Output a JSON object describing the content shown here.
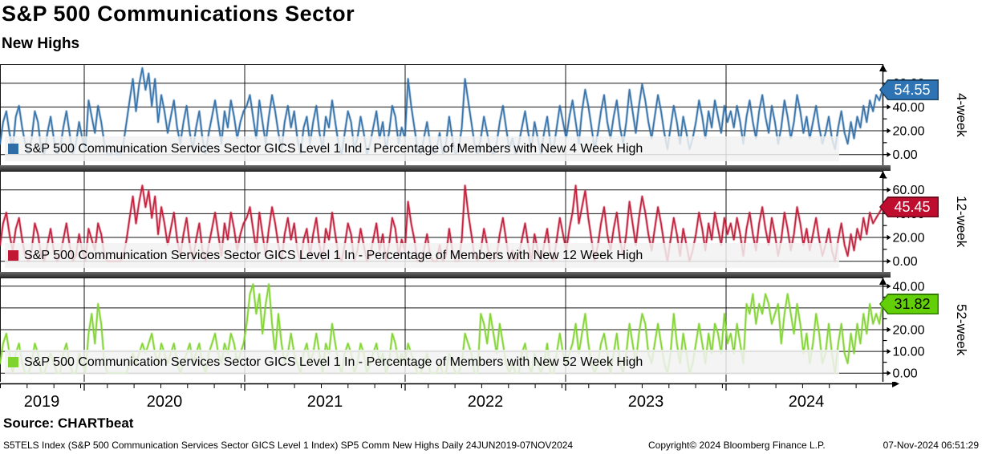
{
  "header": {
    "title": "S&P 500 Communications Sector",
    "subtitle": "New Highs"
  },
  "source_line": "Source: CHARTbeat",
  "footer": {
    "left": "S5TELS Index (S&P 500 Communication Services Sector GICS Level 1 Index) SP5 Comm New Highs  Daily 24JUN2019-07NOV2024",
    "copyright": "Copyright© 2024 Bloomberg Finance L.P.",
    "timestamp": "07-Nov-2024 06:51:29"
  },
  "x_axis": {
    "years": [
      "2019",
      "2020",
      "2021",
      "2022",
      "2023",
      "2024"
    ],
    "start": "24JUN2019",
    "end": "07NOV2024",
    "frequency": "Daily"
  },
  "chart_data": [
    {
      "type": "line",
      "name": "4-week",
      "legend": "S&P 500 Communication Services Sector GICS Level 1 Ind - Percentage of Members with New 4 Week High",
      "line_color": "#2f6da6",
      "badge": {
        "value": "54.55",
        "bg": "#2e74b5",
        "border": "#1c4769",
        "text_color": "#ffffff"
      },
      "ylim": [
        -9,
        76
      ],
      "yticks": [
        0,
        20,
        40,
        60
      ],
      "minor_yticks": [
        10,
        30,
        50,
        70
      ],
      "last_value": 54.55,
      "values": [
        9.1,
        27.3,
        36.4,
        18.2,
        4.5,
        31.8,
        40.9,
        22.7,
        9.1,
        0,
        13.6,
        36.4,
        27.3,
        4.5,
        0,
        18.2,
        31.8,
        13.6,
        0,
        4.5,
        22.7,
        36.4,
        18.2,
        0,
        9.1,
        27.3,
        13.6,
        4.5,
        45.5,
        31.8,
        18.2,
        40.9,
        27.3,
        9.1,
        0,
        0,
        4.5,
        0,
        0,
        9.1,
        27.3,
        45.5,
        63.6,
        36.4,
        59.1,
        72.7,
        54.5,
        68.2,
        40.9,
        63.6,
        27.3,
        50.0,
        36.4,
        18.2,
        31.8,
        45.5,
        22.7,
        9.1,
        27.3,
        40.9,
        18.2,
        4.5,
        22.7,
        36.4,
        13.6,
        0,
        18.2,
        31.8,
        45.5,
        27.3,
        9.1,
        36.4,
        22.7,
        45.5,
        31.8,
        13.6,
        27.3,
        36.4,
        40.9,
        50.0,
        31.8,
        13.6,
        45.5,
        27.3,
        9.1,
        31.8,
        50.0,
        36.4,
        18.2,
        4.5,
        27.3,
        40.9,
        22.7,
        36.4,
        13.6,
        0,
        22.7,
        31.8,
        9.1,
        27.3,
        40.9,
        18.2,
        4.5,
        31.8,
        22.7,
        45.5,
        27.3,
        9.1,
        0,
        18.2,
        36.4,
        27.3,
        4.5,
        13.6,
        31.8,
        18.2,
        0,
        9.1,
        22.7,
        36.4,
        13.6,
        27.3,
        4.5,
        18.2,
        40.9,
        31.8,
        9.1,
        22.7,
        13.6,
        63.6,
        40.9,
        22.7,
        4.5,
        0,
        13.6,
        27.3,
        9.1,
        0,
        4.5,
        18.2,
        0,
        9.1,
        31.8,
        13.6,
        0,
        4.5,
        22.7,
        63.6,
        45.5,
        27.3,
        9.1,
        0,
        13.6,
        31.8,
        18.2,
        4.5,
        0,
        9.1,
        27.3,
        40.9,
        22.7,
        4.5,
        13.6,
        0,
        9.1,
        22.7,
        36.4,
        18.2,
        4.5,
        27.3,
        13.6,
        0,
        18.2,
        31.8,
        9.1,
        4.5,
        22.7,
        40.9,
        27.3,
        13.6,
        31.8,
        45.5,
        27.3,
        9.1,
        36.4,
        54.5,
        40.9,
        22.7,
        4.5,
        18.2,
        36.4,
        50.0,
        27.3,
        13.6,
        31.8,
        45.5,
        22.7,
        9.1,
        27.3,
        54.5,
        36.4,
        18.2,
        40.9,
        59.1,
        45.5,
        27.3,
        13.6,
        31.8,
        50.0,
        36.4,
        18.2,
        4.5,
        22.7,
        40.9,
        27.3,
        9.1,
        31.8,
        18.2,
        4.5,
        13.6,
        27.3,
        45.5,
        31.8,
        13.6,
        36.4,
        22.7,
        45.5,
        31.8,
        18.2,
        40.9,
        27.3,
        36.4,
        22.7,
        40.9,
        27.3,
        9.1,
        31.8,
        45.5,
        27.3,
        13.6,
        36.4,
        50.0,
        31.8,
        18.2,
        40.9,
        27.3,
        9.1,
        22.7,
        45.5,
        31.8,
        13.6,
        27.3,
        50.0,
        36.4,
        18.2,
        31.8,
        13.6,
        27.3,
        40.9,
        22.7,
        9.1,
        18.2,
        31.8,
        13.6,
        4.5,
        22.7,
        36.4,
        18.2,
        9.1,
        27.3,
        13.6,
        31.8,
        22.7,
        40.9,
        27.3,
        45.5,
        36.4,
        50.0,
        45.5,
        54.55
      ]
    },
    {
      "type": "line",
      "name": "12-week",
      "legend": "S&P 500 Communication Services Sector GICS Level 1 In - Percentage of Members with New 12 Week High",
      "line_color": "#c01735",
      "badge": {
        "value": "45.45",
        "bg": "#bf0d30",
        "border": "#6e0a1e",
        "text_color": "#ffffff"
      },
      "ylim": [
        -9,
        76
      ],
      "yticks": [
        0,
        20,
        40,
        60
      ],
      "minor_yticks": [
        10,
        30,
        50,
        70
      ],
      "last_value": 45.45,
      "values": [
        13.6,
        31.8,
        40.9,
        22.7,
        9.1,
        27.3,
        36.4,
        18.2,
        4.5,
        0,
        9.1,
        31.8,
        22.7,
        4.5,
        0,
        13.6,
        27.3,
        9.1,
        0,
        4.5,
        18.2,
        31.8,
        13.6,
        0,
        4.5,
        22.7,
        9.1,
        0,
        27.3,
        18.2,
        9.1,
        31.8,
        22.7,
        4.5,
        0,
        0,
        0,
        0,
        0,
        4.5,
        18.2,
        36.4,
        54.5,
        31.8,
        50.0,
        63.6,
        45.5,
        59.1,
        36.4,
        54.5,
        22.7,
        45.5,
        31.8,
        13.6,
        27.3,
        40.9,
        18.2,
        4.5,
        22.7,
        36.4,
        13.6,
        0,
        18.2,
        31.8,
        9.1,
        0,
        13.6,
        27.3,
        40.9,
        22.7,
        4.5,
        31.8,
        18.2,
        40.9,
        27.3,
        9.1,
        22.7,
        31.8,
        36.4,
        45.5,
        27.3,
        9.1,
        40.9,
        22.7,
        4.5,
        27.3,
        45.5,
        31.8,
        13.6,
        0,
        22.7,
        36.4,
        18.2,
        31.8,
        9.1,
        0,
        18.2,
        27.3,
        4.5,
        22.7,
        36.4,
        13.6,
        0,
        27.3,
        18.2,
        40.9,
        22.7,
        4.5,
        0,
        13.6,
        31.8,
        22.7,
        0,
        9.1,
        27.3,
        13.6,
        0,
        4.5,
        18.2,
        31.8,
        9.1,
        22.7,
        0,
        13.6,
        36.4,
        27.3,
        4.5,
        18.2,
        9.1,
        50.0,
        31.8,
        18.2,
        0,
        0,
        9.1,
        22.7,
        4.5,
        0,
        0,
        13.6,
        0,
        4.5,
        27.3,
        9.1,
        0,
        0,
        18.2,
        63.6,
        40.9,
        22.7,
        4.5,
        0,
        9.1,
        27.3,
        13.6,
        0,
        0,
        4.5,
        22.7,
        36.4,
        18.2,
        0,
        9.1,
        0,
        4.5,
        18.2,
        31.8,
        13.6,
        0,
        22.7,
        9.1,
        0,
        13.6,
        27.3,
        4.5,
        0,
        18.2,
        36.4,
        22.7,
        9.1,
        27.3,
        40.9,
        63.6,
        31.8,
        45.5,
        59.1,
        36.4,
        18.2,
        0,
        13.6,
        31.8,
        45.5,
        22.7,
        9.1,
        27.3,
        40.9,
        18.2,
        4.5,
        22.7,
        50.0,
        31.8,
        13.6,
        36.4,
        54.5,
        40.9,
        22.7,
        9.1,
        27.3,
        45.5,
        31.8,
        13.6,
        0,
        18.2,
        36.4,
        22.7,
        4.5,
        27.3,
        13.6,
        0,
        9.1,
        22.7,
        40.9,
        27.3,
        9.1,
        31.8,
        18.2,
        40.9,
        27.3,
        13.6,
        36.4,
        22.7,
        31.8,
        18.2,
        36.4,
        22.7,
        4.5,
        27.3,
        40.9,
        22.7,
        9.1,
        31.8,
        45.5,
        27.3,
        13.6,
        36.4,
        22.7,
        4.5,
        18.2,
        40.9,
        27.3,
        9.1,
        22.7,
        45.5,
        31.8,
        13.6,
        27.3,
        9.1,
        22.7,
        36.4,
        18.2,
        4.5,
        13.6,
        27.3,
        9.1,
        0,
        18.2,
        31.8,
        13.6,
        4.5,
        22.7,
        9.1,
        27.3,
        18.2,
        36.4,
        22.7,
        40.9,
        31.8,
        36.4,
        40.9,
        45.45
      ]
    },
    {
      "type": "line",
      "name": "52-week",
      "legend": "S&P 500 Communication Services Sector GICS Level 1 In - Percentage of Members with New 52 Week High",
      "line_color": "#7ed32c",
      "badge": {
        "value": "31.82",
        "bg": "#63cf06",
        "border": "#2f7c00",
        "text_color": "#000000"
      },
      "ylim": [
        -4,
        44
      ],
      "yticks": [
        0,
        10,
        20,
        30,
        40
      ],
      "minor_yticks": [
        5,
        15,
        25,
        35
      ],
      "last_value": 31.82,
      "values": [
        4.5,
        13.6,
        18.2,
        9.1,
        0,
        9.1,
        13.6,
        4.5,
        0,
        0,
        4.5,
        13.6,
        9.1,
        0,
        0,
        4.5,
        9.1,
        4.5,
        0,
        0,
        9.1,
        13.6,
        4.5,
        0,
        0,
        9.1,
        4.5,
        0,
        18.2,
        27.3,
        13.6,
        31.8,
        22.7,
        4.5,
        0,
        0,
        0,
        0,
        0,
        0,
        0,
        4.5,
        9.1,
        4.5,
        9.1,
        13.6,
        9.1,
        13.6,
        18.2,
        9.1,
        4.5,
        13.6,
        9.1,
        4.5,
        9.1,
        13.6,
        4.5,
        0,
        4.5,
        9.1,
        13.6,
        4.5,
        9.1,
        13.6,
        4.5,
        0,
        9.1,
        13.6,
        18.2,
        9.1,
        4.5,
        13.6,
        9.1,
        18.2,
        13.6,
        4.5,
        9.1,
        13.6,
        22.7,
        36.4,
        40.9,
        27.3,
        36.4,
        18.2,
        31.8,
        40.9,
        22.7,
        9.1,
        27.3,
        13.6,
        4.5,
        9.1,
        18.2,
        9.1,
        4.5,
        0,
        9.1,
        13.6,
        4.5,
        9.1,
        18.2,
        9.1,
        0,
        13.6,
        9.1,
        22.7,
        13.6,
        4.5,
        0,
        9.1,
        13.6,
        9.1,
        0,
        4.5,
        13.6,
        9.1,
        0,
        4.5,
        9.1,
        13.6,
        4.5,
        9.1,
        0,
        4.5,
        18.2,
        13.6,
        4.5,
        9.1,
        4.5,
        13.6,
        9.1,
        4.5,
        0,
        0,
        4.5,
        9.1,
        0,
        0,
        0,
        4.5,
        0,
        0,
        9.1,
        4.5,
        0,
        0,
        4.5,
        18.2,
        13.6,
        9.1,
        0,
        0,
        27.3,
        22.7,
        13.6,
        27.3,
        18.2,
        9.1,
        22.7,
        13.6,
        4.5,
        0,
        4.5,
        0,
        0,
        9.1,
        13.6,
        4.5,
        0,
        9.1,
        4.5,
        0,
        4.5,
        13.6,
        0,
        0,
        9.1,
        18.2,
        9.1,
        4.5,
        9.1,
        13.6,
        22.7,
        9.1,
        18.2,
        27.3,
        13.6,
        4.5,
        0,
        4.5,
        13.6,
        18.2,
        9.1,
        0,
        9.1,
        18.2,
        4.5,
        0,
        9.1,
        22.7,
        13.6,
        4.5,
        18.2,
        27.3,
        22.7,
        9.1,
        4.5,
        13.6,
        22.7,
        13.6,
        4.5,
        0,
        9.1,
        27.3,
        13.6,
        4.5,
        18.2,
        9.1,
        0,
        4.5,
        13.6,
        22.7,
        13.6,
        4.5,
        18.2,
        9.1,
        22.7,
        18.2,
        9.1,
        27.3,
        13.6,
        18.2,
        9.1,
        22.7,
        13.6,
        4.5,
        31.8,
        27.3,
        36.4,
        22.7,
        31.8,
        27.3,
        36.4,
        31.8,
        22.7,
        27.3,
        31.8,
        13.6,
        27.3,
        36.4,
        27.3,
        18.2,
        31.8,
        22.7,
        9.1,
        18.2,
        4.5,
        13.6,
        27.3,
        18.2,
        4.5,
        9.1,
        22.7,
        9.1,
        0,
        13.6,
        22.7,
        9.1,
        4.5,
        18.2,
        9.1,
        22.7,
        13.6,
        27.3,
        18.2,
        31.8,
        22.7,
        27.3,
        22.7,
        31.82
      ]
    }
  ]
}
